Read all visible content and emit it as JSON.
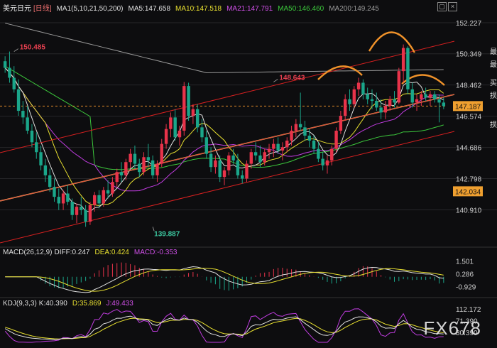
{
  "header": {
    "symbol": "美元日元",
    "period": "[日线]",
    "ma_label": "MA1(5,10,21,50,200)",
    "ma5": "MA5:147.658",
    "ma10": "MA10:147.518",
    "ma21": "MA21:147.791",
    "ma50": "MA50:146.460",
    "ma200": "MA200:149.245"
  },
  "macd_header": {
    "label": "MACD(26,12,9)",
    "diff": "DIFF:0.247",
    "dea": "DEA:0.424",
    "macd": "MACD:-0.353"
  },
  "kdj_header": {
    "label": "KDJ(9,3,3)",
    "k": "K:40.390",
    "d": "D:35.869",
    "j": "J:49.433"
  },
  "side_chars": [
    "最",
    "最",
    "买",
    "损",
    "损"
  ],
  "watermark": "FX678",
  "colors": {
    "up": "#e8334a",
    "down": "#1aa68a",
    "ma5": "#e0e0e0",
    "ma10": "#e8e030",
    "ma21": "#c03ce0",
    "ma50": "#3cc83c",
    "ma200": "#9a9a9a",
    "channel": "#d82020",
    "trend": "#f0a060",
    "arc": "#f0922a"
  },
  "chart_data": [
    {
      "type": "candlestick",
      "title": "美元日元 日线",
      "ylim": [
        139.0,
        153.0
      ],
      "y_ticks": [
        "152.227",
        "150.349",
        "148.462",
        "146.574",
        "144.686",
        "142.798",
        "140.910"
      ],
      "current_price": "147.187",
      "marker_price": "142.034",
      "annotations": [
        {
          "label": "150.485",
          "x": 2,
          "y": 150.485
        },
        {
          "label": "148.643",
          "x": 60,
          "y": 148.643
        },
        {
          "label": "139.887",
          "x": 33,
          "y": 139.887
        },
        {
          "label": "150.914",
          "x": 174,
          "y": 150.914
        }
      ],
      "candles": [
        [
          149.9,
          150.2,
          149.2,
          149.5
        ],
        [
          149.5,
          150.485,
          148.6,
          148.9
        ],
        [
          148.9,
          149.6,
          148.0,
          148.2
        ],
        [
          148.2,
          148.8,
          146.6,
          146.9
        ],
        [
          146.9,
          147.5,
          146.1,
          146.5
        ],
        [
          146.5,
          147.2,
          145.5,
          145.7
        ],
        [
          145.7,
          146.1,
          144.7,
          145.0
        ],
        [
          145.0,
          145.6,
          144.0,
          144.4
        ],
        [
          144.4,
          144.8,
          143.3,
          143.6
        ],
        [
          143.6,
          144.0,
          142.6,
          143.0
        ],
        [
          143.0,
          143.4,
          142.0,
          142.3
        ],
        [
          142.3,
          142.8,
          141.4,
          141.7
        ],
        [
          141.7,
          142.2,
          140.9,
          141.3
        ],
        [
          141.3,
          142.1,
          140.9,
          141.9
        ],
        [
          141.9,
          142.4,
          141.2,
          141.4
        ],
        [
          141.4,
          141.6,
          140.3,
          140.6
        ],
        [
          140.6,
          141.3,
          140.1,
          141.1
        ],
        [
          141.1,
          141.7,
          140.6,
          140.9
        ],
        [
          140.9,
          141.2,
          139.887,
          140.2
        ],
        [
          140.2,
          141.4,
          140.0,
          141.2
        ],
        [
          141.2,
          142.0,
          140.8,
          141.8
        ],
        [
          141.8,
          142.1,
          141.0,
          141.3
        ],
        [
          141.3,
          142.3,
          141.1,
          142.1
        ],
        [
          142.1,
          142.7,
          141.6,
          141.9
        ],
        [
          141.9,
          142.9,
          141.7,
          142.6
        ],
        [
          142.6,
          143.4,
          142.3,
          143.2
        ],
        [
          143.2,
          143.8,
          142.6,
          143.0
        ],
        [
          143.0,
          144.0,
          142.7,
          143.8
        ],
        [
          143.8,
          144.6,
          143.4,
          144.3
        ],
        [
          144.3,
          144.8,
          143.4,
          143.7
        ],
        [
          143.7,
          144.0,
          142.9,
          143.2
        ],
        [
          143.2,
          144.4,
          143.0,
          144.1
        ],
        [
          144.1,
          144.9,
          143.5,
          143.9
        ],
        [
          143.9,
          144.2,
          142.8,
          143.0
        ],
        [
          143.0,
          143.9,
          142.6,
          143.7
        ],
        [
          143.7,
          145.2,
          143.5,
          144.9
        ],
        [
          144.9,
          146.1,
          144.6,
          145.8
        ],
        [
          145.8,
          146.8,
          145.3,
          146.5
        ],
        [
          146.5,
          147.0,
          145.1,
          145.3
        ],
        [
          145.3,
          146.0,
          144.8,
          145.7
        ],
        [
          145.7,
          148.643,
          145.4,
          148.4
        ],
        [
          148.4,
          148.6,
          146.3,
          146.6
        ],
        [
          146.6,
          147.3,
          146.1,
          147.0
        ],
        [
          147.0,
          147.3,
          145.6,
          145.9
        ],
        [
          145.9,
          146.4,
          145.0,
          145.3
        ],
        [
          145.3,
          145.7,
          144.0,
          144.3
        ],
        [
          144.3,
          144.7,
          143.2,
          143.5
        ],
        [
          143.5,
          144.2,
          143.1,
          143.9
        ],
        [
          143.9,
          144.2,
          142.6,
          142.9
        ],
        [
          142.9,
          143.5,
          142.4,
          143.3
        ],
        [
          143.3,
          144.4,
          143.0,
          144.2
        ],
        [
          144.2,
          144.6,
          143.7,
          143.9
        ],
        [
          143.9,
          144.3,
          142.8,
          143.0
        ],
        [
          143.0,
          143.3,
          142.5,
          142.8
        ],
        [
          142.8,
          143.9,
          142.6,
          143.7
        ],
        [
          143.7,
          144.6,
          143.4,
          144.4
        ],
        [
          144.4,
          145.0,
          143.9,
          144.2
        ],
        [
          144.2,
          144.8,
          143.5,
          143.8
        ],
        [
          143.8,
          144.6,
          143.6,
          144.4
        ],
        [
          144.4,
          144.9,
          144.0,
          144.6
        ],
        [
          144.6,
          145.2,
          144.1,
          144.9
        ],
        [
          144.9,
          145.3,
          144.3,
          144.5
        ],
        [
          144.5,
          145.0,
          143.9,
          144.7
        ],
        [
          144.7,
          145.3,
          144.4,
          145.1
        ],
        [
          145.1,
          146.0,
          144.8,
          145.7
        ],
        [
          145.7,
          146.4,
          145.3,
          146.1
        ],
        [
          146.1,
          148.0,
          145.7,
          145.9
        ],
        [
          145.9,
          146.3,
          145.1,
          145.4
        ],
        [
          145.4,
          145.8,
          144.7,
          145.1
        ],
        [
          145.1,
          145.4,
          144.3,
          144.6
        ],
        [
          144.6,
          145.0,
          143.8,
          144.0
        ],
        [
          144.0,
          144.4,
          143.3,
          143.6
        ],
        [
          143.6,
          144.2,
          143.1,
          143.9
        ],
        [
          143.9,
          144.8,
          143.6,
          144.6
        ],
        [
          144.6,
          145.9,
          144.4,
          145.7
        ],
        [
          145.7,
          146.9,
          145.5,
          146.6
        ],
        [
          146.6,
          147.9,
          146.3,
          147.6
        ],
        [
          147.6,
          148.2,
          146.9,
          147.3
        ],
        [
          147.3,
          148.4,
          147.1,
          148.2
        ],
        [
          148.2,
          148.9,
          147.8,
          148.6
        ],
        [
          148.6,
          148.8,
          147.6,
          147.9
        ],
        [
          147.9,
          148.3,
          147.3,
          147.6
        ],
        [
          147.6,
          148.2,
          147.0,
          147.5
        ],
        [
          147.5,
          148.0,
          146.9,
          147.1
        ],
        [
          147.1,
          147.6,
          146.4,
          146.8
        ],
        [
          146.8,
          147.5,
          146.4,
          147.2
        ],
        [
          147.2,
          147.8,
          146.9,
          147.6
        ],
        [
          147.6,
          148.1,
          147.1,
          147.4
        ],
        [
          147.4,
          149.5,
          147.3,
          149.3
        ],
        [
          149.3,
          150.914,
          148.6,
          150.7
        ],
        [
          150.7,
          150.8,
          147.9,
          148.2
        ],
        [
          148.2,
          148.6,
          147.1,
          147.4
        ],
        [
          147.4,
          147.9,
          146.9,
          147.6
        ],
        [
          147.6,
          148.1,
          147.2,
          147.9
        ],
        [
          147.9,
          148.3,
          147.5,
          147.7
        ],
        [
          147.7,
          148.1,
          147.2,
          147.9
        ],
        [
          147.9,
          148.1,
          147.4,
          147.6
        ],
        [
          147.6,
          147.9,
          146.2,
          147.4
        ],
        [
          147.4,
          147.7,
          147.0,
          147.187
        ]
      ]
    },
    {
      "type": "line",
      "title": "MACD(26,12,9)",
      "y_ticks": [
        "1.501",
        "0.286",
        "-0.929"
      ],
      "ylim": [
        -1.5,
        2.0
      ]
    },
    {
      "type": "line",
      "title": "KDJ(9,3,3)",
      "y_ticks": [
        "112.172",
        "71.390",
        "30.390"
      ],
      "ylim": [
        0,
        120
      ]
    }
  ]
}
